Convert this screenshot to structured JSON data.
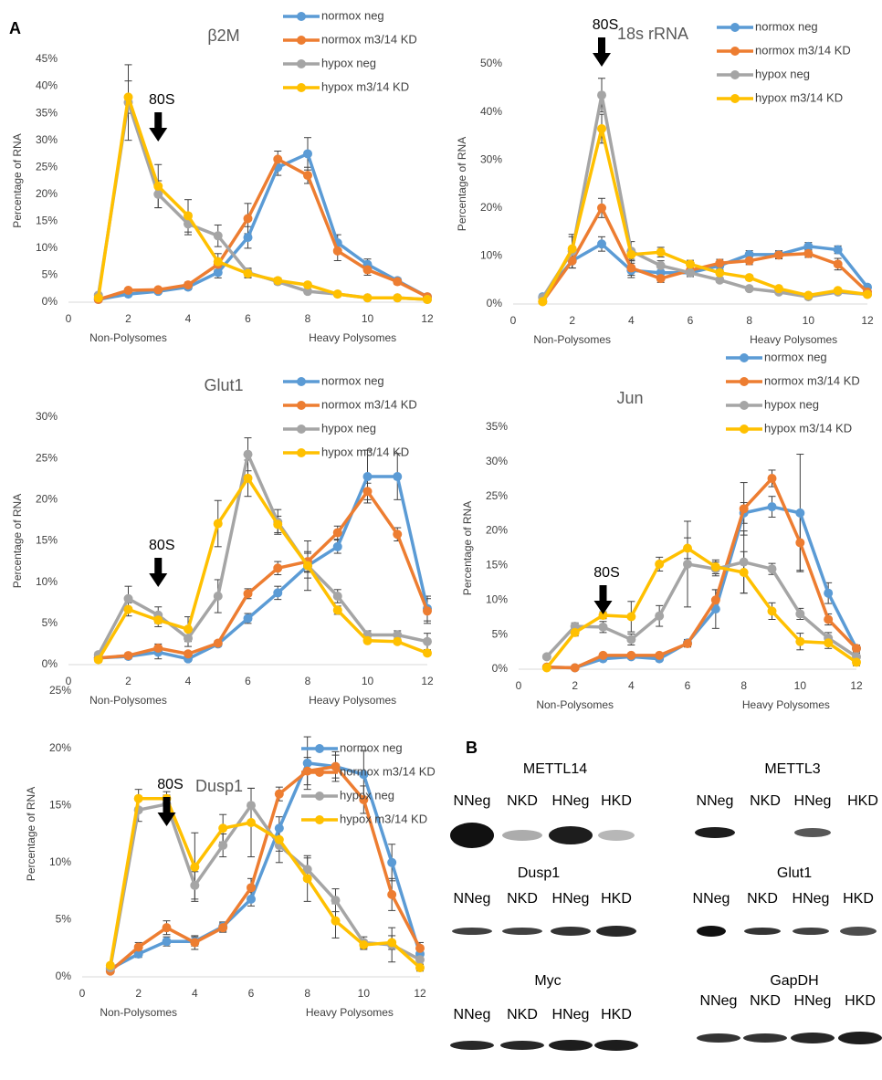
{
  "chart_data": [
    {
      "type": "line",
      "title": "β2M",
      "y_label": "Percentage of RNA",
      "x_annotations": [
        "Non-Polysomes",
        "Heavy Polysomes"
      ],
      "annotation": {
        "text": "80S",
        "x": 3
      },
      "x": [
        1,
        2,
        3,
        4,
        5,
        6,
        7,
        8,
        9,
        10,
        11,
        12
      ],
      "xlim": [
        0,
        12
      ],
      "xticks": [
        0,
        2,
        4,
        6,
        8,
        10,
        12
      ],
      "ylim": [
        0,
        45
      ],
      "yticks": [
        {
          "value": 0,
          "label": "0%"
        },
        {
          "value": 5,
          "label": "5%"
        },
        {
          "value": 10,
          "label": "10%"
        },
        {
          "value": 15,
          "label": "15%"
        },
        {
          "value": 20,
          "label": "20%"
        },
        {
          "value": 25,
          "label": "25%"
        },
        {
          "value": 30,
          "label": "30%"
        },
        {
          "value": 35,
          "label": "35%"
        },
        {
          "value": 40,
          "label": "40%"
        },
        {
          "value": 45,
          "label": "45%"
        }
      ],
      "grid": false,
      "series": [
        {
          "name": "normox neg",
          "color": "#5b9bd5",
          "values": [
            0.5,
            1.5,
            2,
            2.8,
            5.5,
            12,
            25,
            27.5,
            11,
            7,
            4,
            1
          ],
          "errors": [
            0.3,
            0.3,
            0.4,
            0.5,
            1,
            2,
            1.5,
            3,
            1.5,
            1,
            0.5,
            0.3
          ]
        },
        {
          "name": "normox m3/14 KD",
          "color": "#ed7d31",
          "values": [
            0.5,
            2.2,
            2.3,
            3.2,
            7,
            15.5,
            26.5,
            23.5,
            9.5,
            6,
            3.8,
            1
          ],
          "errors": [
            0.3,
            0.3,
            0.4,
            0.5,
            1,
            2.8,
            1.5,
            1.5,
            1.8,
            1,
            0.5,
            0.3
          ]
        },
        {
          "name": "hypox neg",
          "color": "#a5a5a5",
          "values": [
            1.3,
            37,
            20,
            14.5,
            12.3,
            5.5,
            3.8,
            2,
            1.5,
            0.8,
            0.8,
            0.5
          ],
          "errors": [
            0.3,
            7,
            2.5,
            2,
            2,
            0.8,
            0.5,
            0.4,
            0.3,
            0.3,
            0.3,
            0.3
          ]
        },
        {
          "name": "hypox m3/14 KD",
          "color": "#ffc000",
          "values": [
            0.8,
            38,
            21.5,
            16,
            7.5,
            5.3,
            4,
            3.2,
            1.5,
            0.8,
            0.8,
            0.5
          ],
          "errors": [
            0.3,
            3,
            4,
            3,
            1.5,
            0.8,
            0.5,
            0.4,
            0.3,
            0.3,
            0.3,
            0.3
          ]
        }
      ]
    },
    {
      "type": "line",
      "title": "18s rRNA",
      "y_label": "Percentage of RNA",
      "x_annotations": [
        "Non-Polysomes",
        "Heavy Polysomes"
      ],
      "annotation": {
        "text": "80S",
        "x": 3
      },
      "x": [
        1,
        2,
        3,
        4,
        5,
        6,
        7,
        8,
        9,
        10,
        11,
        12
      ],
      "xlim": [
        0,
        12
      ],
      "xticks": [
        0,
        2,
        4,
        6,
        8,
        10,
        12
      ],
      "ylim": [
        0,
        50
      ],
      "yticks": [
        {
          "value": 0,
          "label": "0%"
        },
        {
          "value": 10,
          "label": "10%"
        },
        {
          "value": 20,
          "label": "20%"
        },
        {
          "value": 30,
          "label": "30%"
        },
        {
          "value": 40,
          "label": "40%"
        },
        {
          "value": 50,
          "label": "50%"
        }
      ],
      "grid": false,
      "series": [
        {
          "name": "normox neg",
          "color": "#5b9bd5",
          "values": [
            1.5,
            9,
            12.5,
            7,
            6.5,
            6.5,
            8,
            10.3,
            10.3,
            12,
            11.3,
            3.5
          ],
          "errors": [
            0.3,
            1.5,
            1.5,
            1.5,
            1,
            0.8,
            0.8,
            0.8,
            0.8,
            0.8,
            0.8,
            0.5
          ]
        },
        {
          "name": "normox m3/14 KD",
          "color": "#ed7d31",
          "values": [
            0.5,
            9,
            20,
            7.5,
            5.3,
            7,
            8.5,
            9,
            10.2,
            10.5,
            8.3,
            2.5
          ],
          "errors": [
            0.3,
            1.5,
            2,
            1.5,
            0.8,
            0.8,
            0.8,
            0.8,
            0.8,
            0.8,
            1.2,
            0.5
          ]
        },
        {
          "name": "hypox neg",
          "color": "#a5a5a5",
          "values": [
            1.3,
            11,
            43.5,
            11,
            8,
            6.5,
            5,
            3.2,
            2.5,
            1.5,
            2.5,
            2
          ],
          "errors": [
            0.3,
            3.5,
            3.5,
            2,
            1,
            0.8,
            0.5,
            0.4,
            0.3,
            0.3,
            0.3,
            0.3
          ]
        },
        {
          "name": "hypox m3/14 KD",
          "color": "#ffc000",
          "values": [
            0.5,
            11.5,
            36.5,
            10.3,
            10.8,
            8.3,
            6.5,
            5.5,
            3.2,
            1.8,
            2.8,
            2
          ],
          "errors": [
            0.3,
            2.5,
            3,
            1,
            1,
            0.8,
            0.5,
            0.5,
            0.3,
            0.3,
            0.3,
            0.3
          ]
        }
      ]
    },
    {
      "type": "line",
      "title": "Glut1",
      "y_label": "Percentage of RNA",
      "x_annotations": [
        "Non-Polysomes",
        "Heavy Polysomes"
      ],
      "annotation": {
        "text": "80S",
        "x": 3
      },
      "x": [
        1,
        2,
        3,
        4,
        5,
        6,
        7,
        8,
        9,
        10,
        11,
        12
      ],
      "xlim": [
        0,
        12
      ],
      "xticks": [
        0,
        2,
        4,
        6,
        8,
        10,
        12
      ],
      "ylim": [
        0,
        30
      ],
      "yticks": [
        {
          "value": 0,
          "label": "0%"
        },
        {
          "value": 5,
          "label": "5%"
        },
        {
          "value": 10,
          "label": "10%"
        },
        {
          "value": 15,
          "label": "15%"
        },
        {
          "value": 20,
          "label": "20%"
        },
        {
          "value": 25,
          "label": "25%"
        },
        {
          "value": 30,
          "label": "30%"
        }
      ],
      "grid": false,
      "series": [
        {
          "name": "normox neg",
          "color": "#5b9bd5",
          "values": [
            0.8,
            1,
            1.5,
            0.7,
            2.5,
            5.6,
            8.7,
            12,
            14.3,
            22.8,
            22.8,
            6.8
          ],
          "errors": [
            0.3,
            0.3,
            0.8,
            0.3,
            0.3,
            0.6,
            0.8,
            0.8,
            0.8,
            3.2,
            2.8,
            1.5
          ]
        },
        {
          "name": "normox m3/14 KD",
          "color": "#ed7d31",
          "values": [
            0.8,
            1.1,
            2,
            1.3,
            2.6,
            8.6,
            11.7,
            12.5,
            16,
            21,
            15.8,
            6.5
          ],
          "errors": [
            0.3,
            0.3,
            0.5,
            0.3,
            0.3,
            0.6,
            0.8,
            1.2,
            0.8,
            1,
            0.8,
            1.5
          ]
        },
        {
          "name": "hypox neg",
          "color": "#a5a5a5",
          "values": [
            1.2,
            8,
            6,
            3.2,
            8.3,
            25.5,
            17.3,
            12,
            8.3,
            3.6,
            3.6,
            2.8
          ],
          "errors": [
            0.3,
            1.5,
            1,
            1,
            2,
            2,
            1.5,
            3,
            0.8,
            0.5,
            0.5,
            1
          ]
        },
        {
          "name": "hypox m3/14 KD",
          "color": "#ffc000",
          "values": [
            0.6,
            6.7,
            5.4,
            4.3,
            17.1,
            22.6,
            17,
            12,
            6.6,
            2.9,
            2.8,
            1.4
          ],
          "errors": [
            0.3,
            0.8,
            0.8,
            1.5,
            2.8,
            2.2,
            1,
            1.5,
            0.5,
            0.3,
            0.3,
            0.3
          ]
        }
      ]
    },
    {
      "type": "line",
      "title": "Jun",
      "y_label": "Percentage of RNA",
      "x_annotations": [
        "Non-Polysomes",
        "Heavy Polysomes"
      ],
      "annotation": {
        "text": "80S",
        "x": 3
      },
      "x": [
        1,
        2,
        3,
        4,
        5,
        6,
        7,
        8,
        9,
        10,
        11,
        12
      ],
      "xlim": [
        0,
        12
      ],
      "xticks": [
        0,
        2,
        4,
        6,
        8,
        10,
        12
      ],
      "ylim": [
        0,
        35
      ],
      "yticks": [
        {
          "value": 0,
          "label": "0%"
        },
        {
          "value": 5,
          "label": "5%"
        },
        {
          "value": 10,
          "label": "10%"
        },
        {
          "value": 15,
          "label": "15%"
        },
        {
          "value": 20,
          "label": "20%"
        },
        {
          "value": 25,
          "label": "25%"
        },
        {
          "value": 30,
          "label": "30%"
        },
        {
          "value": 35,
          "label": "35%"
        }
      ],
      "grid": false,
      "series": [
        {
          "name": "normox neg",
          "color": "#5b9bd5",
          "values": [
            0.3,
            0.2,
            1.5,
            1.8,
            1.5,
            3.8,
            8.7,
            22.6,
            23.5,
            22.6,
            11,
            3
          ],
          "errors": [
            0.2,
            0.2,
            0.3,
            0.3,
            0.3,
            0.5,
            2.8,
            1.5,
            1.5,
            8.5,
            1.5,
            0.5
          ]
        },
        {
          "name": "normox m3/14 KD",
          "color": "#ed7d31",
          "values": [
            0.3,
            0.2,
            2,
            2,
            2,
            3.7,
            10,
            23.2,
            27.6,
            18.3,
            7.2,
            3
          ],
          "errors": [
            0.2,
            0.2,
            0.3,
            0.3,
            0.3,
            0.5,
            1.5,
            3.8,
            1.2,
            4,
            0.8,
            0.5
          ]
        },
        {
          "name": "hypox neg",
          "color": "#a5a5a5",
          "values": [
            1.8,
            6.2,
            6.1,
            4.3,
            7.7,
            15.2,
            14.5,
            15.5,
            14.5,
            8,
            4.5,
            1.8
          ],
          "errors": [
            0.3,
            0.5,
            0.8,
            0.8,
            1.5,
            6.2,
            1,
            4.5,
            0.8,
            0.8,
            0.8,
            0.5
          ]
        },
        {
          "name": "hypox m3/14 KD",
          "color": "#ffc000",
          "values": [
            0.2,
            5.3,
            7.8,
            7.6,
            15.2,
            17.5,
            14.8,
            14,
            8.4,
            4,
            3.8,
            1
          ],
          "errors": [
            0.2,
            0.5,
            0.5,
            2.2,
            1,
            1.5,
            1,
            3,
            1.2,
            1.2,
            0.8,
            0.5
          ]
        }
      ]
    },
    {
      "type": "line",
      "title": "Dusp1",
      "y_label": "Percentage of RNA",
      "x_annotations": [
        "Non-Polysomes",
        "Heavy Polysomes"
      ],
      "annotation": {
        "text": "80S",
        "x": 3
      },
      "x": [
        1,
        2,
        3,
        4,
        5,
        6,
        7,
        8,
        9,
        10,
        11,
        12
      ],
      "xlim": [
        0,
        12
      ],
      "xticks": [
        0,
        2,
        4,
        6,
        8,
        10,
        12
      ],
      "ylim": [
        0,
        25
      ],
      "yticks": [
        {
          "value": 0,
          "label": "0%"
        },
        {
          "value": 5,
          "label": "5%"
        },
        {
          "value": 10,
          "label": "10%"
        },
        {
          "value": 15,
          "label": "15%"
        },
        {
          "value": 20,
          "label": "20%"
        },
        {
          "value": 25,
          "label": "25%"
        }
      ],
      "grid": false,
      "series": [
        {
          "name": "normox neg",
          "color": "#5b9bd5",
          "values": [
            0.7,
            2,
            3.1,
            3.1,
            4.4,
            6.8,
            13,
            18.7,
            18.4,
            17.7,
            10,
            2
          ],
          "errors": [
            0.2,
            0.3,
            0.4,
            0.4,
            0.4,
            0.6,
            1,
            2.3,
            1.3,
            2.1,
            1.6,
            0.4
          ]
        },
        {
          "name": "normox m3/14 KD",
          "color": "#ed7d31",
          "values": [
            0.5,
            2.6,
            4.3,
            3,
            4.3,
            7.8,
            16,
            18,
            18.4,
            15.5,
            7.2,
            2.5
          ],
          "errors": [
            0.2,
            0.4,
            0.6,
            0.6,
            0.4,
            0.8,
            0.6,
            1.2,
            1,
            1.2,
            1.4,
            0.5
          ]
        },
        {
          "name": "hypox neg",
          "color": "#a5a5a5",
          "values": [
            0.8,
            14.6,
            15.1,
            8,
            11.5,
            15,
            11.5,
            9.4,
            6.7,
            3,
            2.8,
            1.5
          ],
          "errors": [
            0.2,
            1,
            0.8,
            1.2,
            1,
            1.5,
            1.5,
            1,
            1,
            0.5,
            1.5,
            0.4
          ]
        },
        {
          "name": "hypox m3/14 KD",
          "color": "#ffc000",
          "values": [
            1,
            15.6,
            15.6,
            9.6,
            13,
            13.5,
            12,
            8.6,
            4.9,
            2.8,
            3,
            0.8
          ],
          "errors": [
            0.2,
            0.8,
            0.6,
            3,
            1.2,
            3,
            1,
            2,
            1.5,
            0.4,
            0.6,
            0.3
          ]
        }
      ]
    }
  ],
  "figure": {
    "panel_labels": [
      "A",
      "B"
    ],
    "blots": [
      {
        "title": "METTL14",
        "lanes": [
          "NNeg",
          "NKD",
          "HNeg",
          "HKD"
        ]
      },
      {
        "title": "METTL3",
        "lanes": [
          "NNeg",
          "NKD",
          "HNeg",
          "HKD"
        ]
      },
      {
        "title": "Dusp1",
        "lanes": [
          "NNeg",
          "NKD",
          "HNeg",
          "HKD"
        ]
      },
      {
        "title": "Glut1",
        "lanes": [
          "NNeg",
          "NKD",
          "HNeg",
          "HKD"
        ]
      },
      {
        "title": "Myc",
        "lanes": [
          "NNeg",
          "NKD",
          "HNeg",
          "HKD"
        ]
      },
      {
        "title": "GapDH",
        "lanes": [
          "NNeg",
          "NKD",
          "HNeg",
          "HKD"
        ]
      }
    ]
  }
}
